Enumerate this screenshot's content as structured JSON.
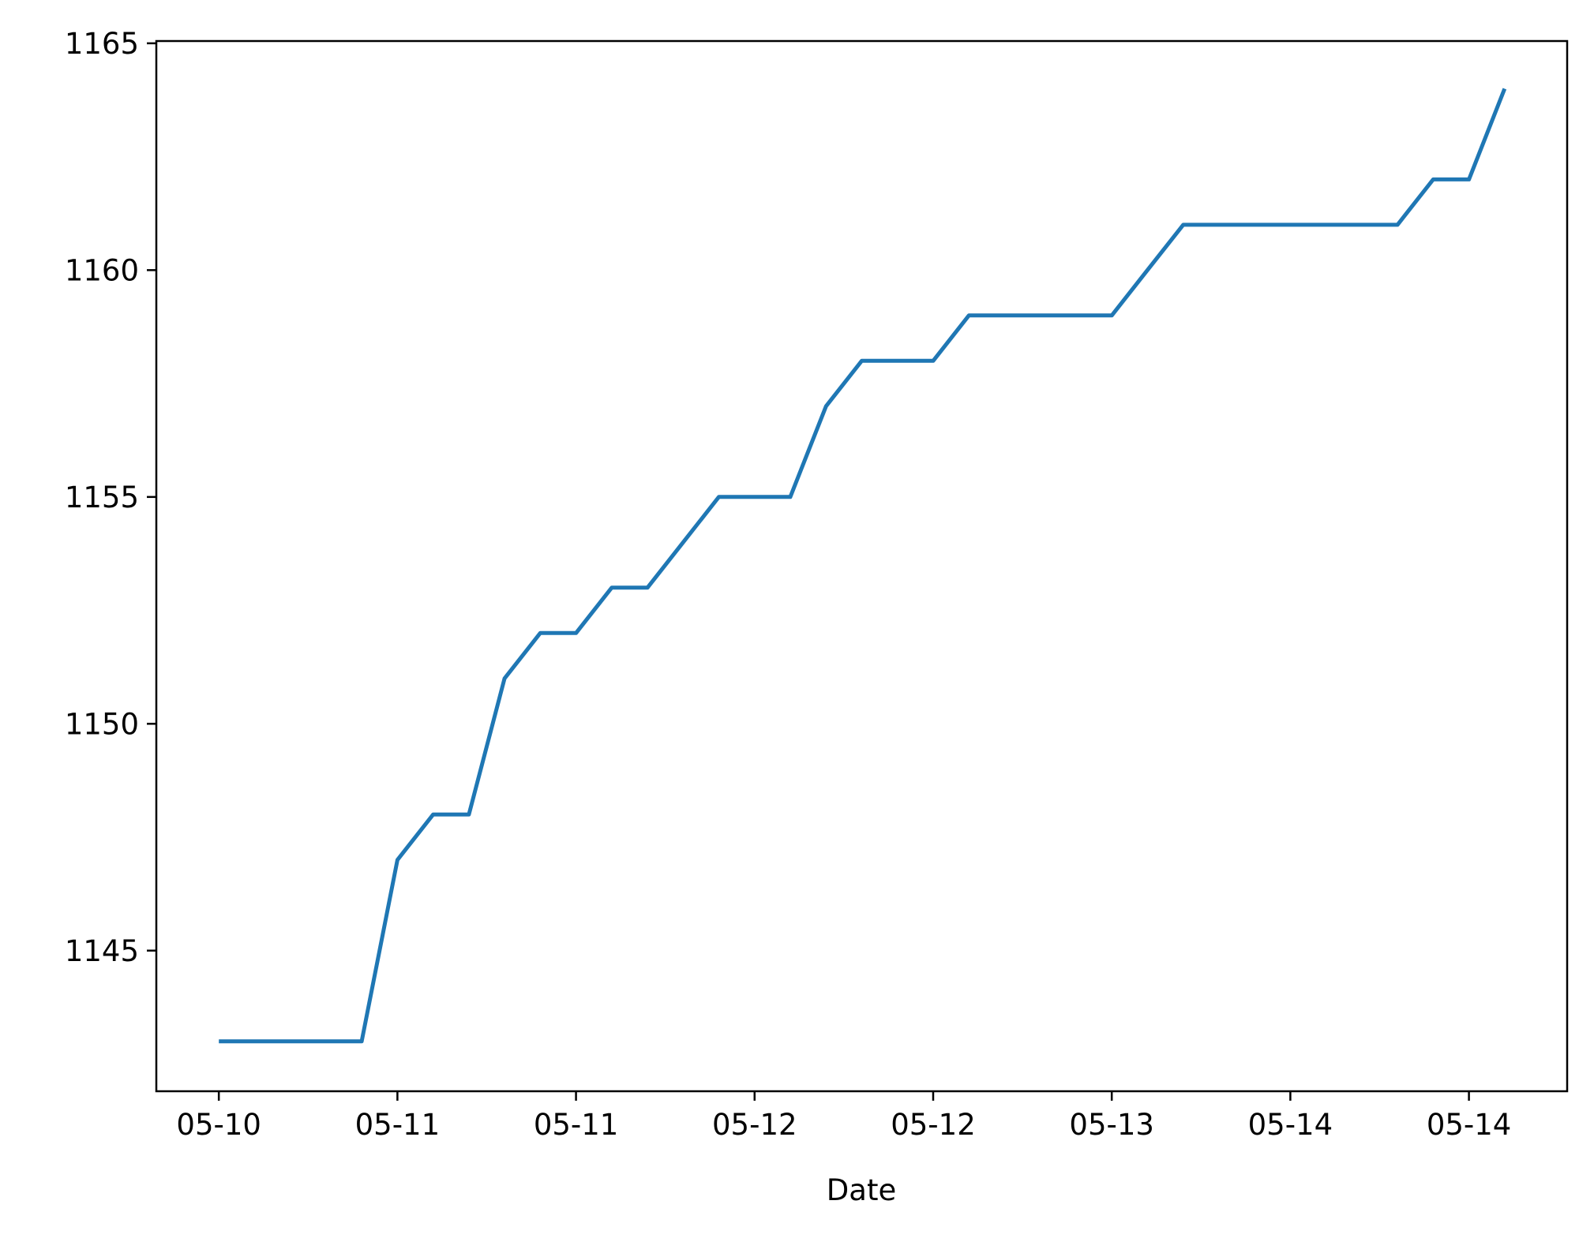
{
  "chart_data": {
    "type": "line",
    "title": "",
    "xlabel": "Date",
    "ylabel": "",
    "x_tick_labels": [
      "05-10",
      "05-11",
      "05-11",
      "05-12",
      "05-12",
      "05-13",
      "05-14",
      "05-14"
    ],
    "y_tick_labels": [
      "1145",
      "1150",
      "1155",
      "1160",
      "1165"
    ],
    "y_ticks": [
      1145,
      1150,
      1155,
      1160,
      1165
    ],
    "ylim": [
      1141.9,
      1165.05
    ],
    "x_ticks_hours": [
      0,
      12,
      24,
      36,
      48,
      60,
      72,
      84
    ],
    "xlim_hours": [
      -4.2,
      90.6
    ],
    "grid": false,
    "color": "#1f77b4",
    "series": [
      {
        "name": "",
        "x_hours": [
          0,
          2.4,
          4.8,
          7.2,
          9.6,
          12,
          14.4,
          16.8,
          19.2,
          21.6,
          24,
          26.4,
          28.8,
          31.2,
          33.6,
          36,
          38.4,
          40.8,
          43.2,
          45.6,
          48,
          50.4,
          52.8,
          55.2,
          57.6,
          60,
          62.4,
          64.8,
          67.2,
          69.6,
          72,
          74.4,
          76.8,
          79.2,
          81.6,
          84,
          86.4
        ],
        "values": [
          1143,
          1143,
          1143,
          1143,
          1143,
          1147,
          1148,
          1148,
          1151,
          1152,
          1152,
          1153,
          1153,
          1154,
          1155,
          1155,
          1155,
          1157,
          1158,
          1158,
          1158,
          1159,
          1159,
          1159,
          1159,
          1159,
          1160,
          1161,
          1161,
          1161,
          1161,
          1161,
          1161,
          1161,
          1162,
          1162,
          1164
        ]
      }
    ]
  }
}
